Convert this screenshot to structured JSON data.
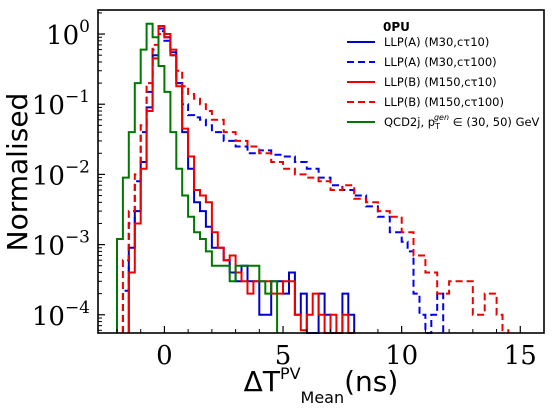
{
  "chart_data": {
    "type": "histogram",
    "xlabel": "ΔT",
    "xlabel_sup": "PV",
    "xlabel_sub": "Mean",
    "xlabel_unit": "(ns)",
    "ylabel": "Normalised",
    "xlim": [
      -2.8,
      16.0
    ],
    "ylim": [
      5.5e-05,
      2.2
    ],
    "yscale": "log",
    "x_ticks": [
      0,
      5,
      10,
      15
    ],
    "x_tick_labels": [
      "0",
      "5",
      "10",
      "15"
    ],
    "y_ticks": [
      0.0001,
      0.001,
      0.01,
      0.1,
      1
    ],
    "y_tick_labels": [
      [
        "10",
        "−4"
      ],
      [
        "10",
        "−3"
      ],
      [
        "10",
        "−2"
      ],
      [
        "10",
        "−1"
      ],
      [
        "10",
        "0"
      ]
    ],
    "legend": {
      "title": "0PU",
      "placement": "top-right",
      "entries": [
        {
          "label": "LLP(A) (M30,cτ10)",
          "color": "#0000cc",
          "dash": false
        },
        {
          "label": "LLP(A) (M30,cτ100)",
          "color": "#0000ee",
          "dash": true
        },
        {
          "label": "LLP(B) (M150,cτ10)",
          "color": "#ee0000",
          "dash": false
        },
        {
          "label": "LLP(B) (M150,cτ100)",
          "color": "#ee0000",
          "dash": true
        },
        {
          "label": "QCD2j, p",
          "label_sup": "gen",
          "label_sub": "T",
          "label_tail": " ∈ (30, 50) GeV",
          "color": "#007700",
          "dash": false
        }
      ]
    },
    "series": [
      {
        "name": "LLP(A) (M30,cτ10)",
        "color": "#0000cc",
        "dash": false,
        "edges": [
          -1.5,
          -1.25,
          -1.0,
          -0.75,
          -0.5,
          -0.25,
          0,
          0.25,
          0.5,
          0.75,
          1.0,
          1.25,
          1.5,
          1.75,
          2.0,
          2.25,
          2.5,
          2.75,
          3.0,
          3.25,
          3.5,
          4.0,
          4.5,
          5.0,
          5.25,
          5.5,
          5.75,
          6.0,
          6.5,
          6.75,
          7.0,
          7.5,
          7.75,
          8.0
        ],
        "values": [
          0.0009,
          0.003,
          0.015,
          0.09,
          0.5,
          1.2,
          0.9,
          0.55,
          0.2,
          0.04,
          0.012,
          0.004,
          0.003,
          0.0018,
          0.0009,
          0.0009,
          0.0006,
          0.0004,
          0.0003,
          0.0005,
          0.0003,
          0.0001,
          0.0003,
          0.0002,
          0.0004,
          0.0001,
          0.0002,
          5e-05,
          0.0002,
          0.0001,
          5e-05,
          0.0002,
          0.0001
        ]
      },
      {
        "name": "LLP(A) (M30,cτ100)",
        "color": "#0000ee",
        "dash": true,
        "edges": [
          -1.75,
          -1.5,
          -1.25,
          -1.0,
          -0.75,
          -0.5,
          -0.25,
          0,
          0.25,
          0.5,
          0.75,
          1.0,
          1.25,
          1.5,
          1.75,
          2.0,
          2.5,
          3.0,
          3.5,
          4.0,
          4.5,
          5.0,
          5.5,
          6.0,
          6.5,
          7.0,
          7.5,
          8.0,
          8.5,
          9.0,
          9.5,
          10.0,
          10.25,
          10.5,
          10.75,
          11.0,
          11.25,
          11.5,
          11.75
        ],
        "values": [
          0.00022,
          0.002,
          0.008,
          0.04,
          0.15,
          0.6,
          1.1,
          0.8,
          0.5,
          0.2,
          0.1,
          0.07,
          0.065,
          0.06,
          0.05,
          0.04,
          0.03,
          0.025,
          0.02,
          0.022,
          0.019,
          0.018,
          0.015,
          0.012,
          0.009,
          0.007,
          0.006,
          0.005,
          0.0035,
          0.0025,
          0.0015,
          0.0011,
          0.0008,
          0.0002,
          0.0001,
          5e-05,
          0.0001,
          0.0002
        ]
      },
      {
        "name": "LLP(B) (M150,cτ10)",
        "color": "#ee0000",
        "dash": false,
        "edges": [
          -1.5,
          -1.25,
          -1.0,
          -0.75,
          -0.5,
          -0.25,
          0,
          0.25,
          0.5,
          0.75,
          1.0,
          1.25,
          1.5,
          1.75,
          2.0,
          2.25,
          2.5,
          2.75,
          3.0,
          3.25,
          3.5,
          3.75,
          4.0,
          4.5,
          5.0,
          5.5,
          5.75,
          6.0,
          6.25,
          6.5,
          6.75,
          7.0,
          7.25,
          7.5,
          7.75,
          8.0
        ],
        "values": [
          0.0004,
          0.002,
          0.012,
          0.08,
          0.45,
          1.3,
          1.0,
          0.5,
          0.18,
          0.045,
          0.018,
          0.006,
          0.005,
          0.004,
          0.0015,
          0.0009,
          0.0006,
          0.0007,
          0.0004,
          0.0003,
          0.0002,
          0.0003,
          0.0003,
          0.0002,
          0.0003,
          0.0001,
          6e-05,
          0.0001,
          0.0002,
          0.0001,
          5e-05,
          0.0001,
          5e-05,
          0.0001,
          5e-05
        ]
      },
      {
        "name": "LLP(B) (M150,cτ100)",
        "color": "#ee0000",
        "dash": true,
        "edges": [
          -1.75,
          -1.5,
          -1.25,
          -1.0,
          -0.75,
          -0.5,
          -0.25,
          0,
          0.25,
          0.5,
          0.75,
          1.0,
          1.25,
          1.5,
          1.75,
          2.0,
          2.5,
          3.0,
          3.5,
          4.0,
          4.5,
          5.0,
          5.5,
          6.0,
          6.5,
          7.0,
          7.5,
          8.0,
          8.5,
          9.0,
          9.5,
          10.0,
          10.5,
          11.0,
          11.5,
          12.0,
          12.5,
          13.0,
          13.5,
          14.0,
          14.25,
          14.5
        ],
        "values": [
          0.0006,
          0.003,
          0.01,
          0.05,
          0.2,
          0.7,
          1.0,
          0.9,
          0.6,
          0.3,
          0.18,
          0.14,
          0.12,
          0.1,
          0.08,
          0.06,
          0.04,
          0.03,
          0.025,
          0.02,
          0.015,
          0.012,
          0.01,
          0.009,
          0.008,
          0.006,
          0.007,
          0.0045,
          0.004,
          0.003,
          0.0025,
          0.0015,
          0.0007,
          0.0004,
          0.0002,
          0.0003,
          0.0003,
          0.0001,
          0.0002,
          0.0001,
          6e-05
        ]
      },
      {
        "name": "QCD2j, pT gen ∈ (30, 50) GeV",
        "color": "#007700",
        "dash": false,
        "edges": [
          -2.0,
          -1.75,
          -1.5,
          -1.25,
          -1.0,
          -0.75,
          -0.5,
          -0.25,
          0,
          0.25,
          0.5,
          0.75,
          1.0,
          1.25,
          1.5,
          1.75,
          2.0,
          2.25,
          2.5,
          2.75,
          3.0,
          3.5,
          4.0,
          4.25,
          4.5,
          4.75
        ],
        "values": [
          0.0012,
          0.009,
          0.04,
          0.2,
          0.6,
          1.4,
          0.9,
          0.35,
          0.15,
          0.04,
          0.012,
          0.005,
          0.0025,
          0.0015,
          0.0012,
          0.0008,
          0.0005,
          0.0005,
          0.0005,
          0.0003,
          0.0005,
          0.0005,
          0.0003,
          0.0002,
          0.0003
        ]
      }
    ]
  }
}
